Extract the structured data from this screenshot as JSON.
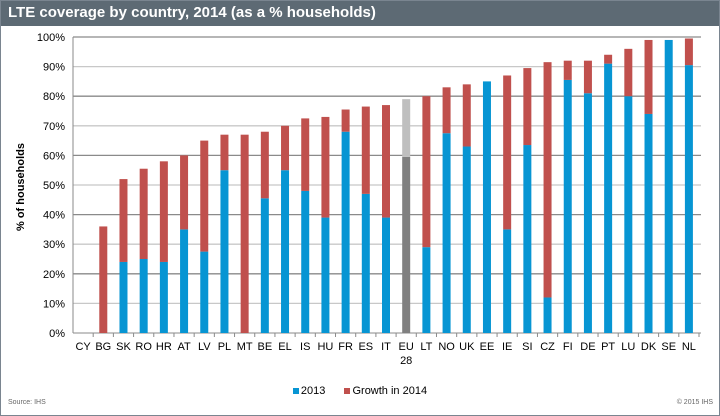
{
  "chart_data": {
    "type": "bar",
    "stacked": true,
    "title": "LTE coverage by country, 2014 (as a % households)",
    "ylabel": "% of households",
    "xlabel": "",
    "ylim": [
      0,
      100
    ],
    "yticks": [
      "0%",
      "10%",
      "20%",
      "30%",
      "40%",
      "50%",
      "60%",
      "70%",
      "80%",
      "90%",
      "100%"
    ],
    "grid": true,
    "legend_placement": "bottom",
    "categories": [
      "CY",
      "BG",
      "SK",
      "RO",
      "HR",
      "AT",
      "LV",
      "PL",
      "MT",
      "BE",
      "EL",
      "IS",
      "HU",
      "FR",
      "ES",
      "IT",
      "EU 28",
      "LT",
      "NO",
      "UK",
      "EE",
      "IE",
      "SI",
      "CZ",
      "FI",
      "DE",
      "PT",
      "LU",
      "DK",
      "SE",
      "NL"
    ],
    "series": [
      {
        "name": "2013",
        "color": "#0795d3",
        "values": [
          0,
          0,
          24,
          25,
          24,
          35,
          27.5,
          55,
          0,
          45.5,
          55,
          48,
          39,
          68,
          47,
          39,
          59.5,
          29,
          67.5,
          63,
          85,
          35,
          63.5,
          12,
          85.5,
          81,
          91,
          80,
          74,
          99,
          90.5
        ]
      },
      {
        "name": "Growth in 2014",
        "color": "#c0504d",
        "values": [
          0,
          36,
          28,
          30.5,
          34,
          25,
          37.5,
          12,
          67,
          22.5,
          15,
          24.5,
          34,
          7.5,
          29.5,
          38,
          19.5,
          51,
          15.5,
          21,
          0,
          52,
          26,
          79.5,
          6.5,
          11,
          3,
          16,
          25,
          0,
          9
        ]
      }
    ],
    "highlight": {
      "category": "EU 28",
      "colors": [
        "#808080",
        "#bfbfbf"
      ]
    }
  },
  "source": "Source: IHS",
  "copyright": "© 2015 IHS"
}
